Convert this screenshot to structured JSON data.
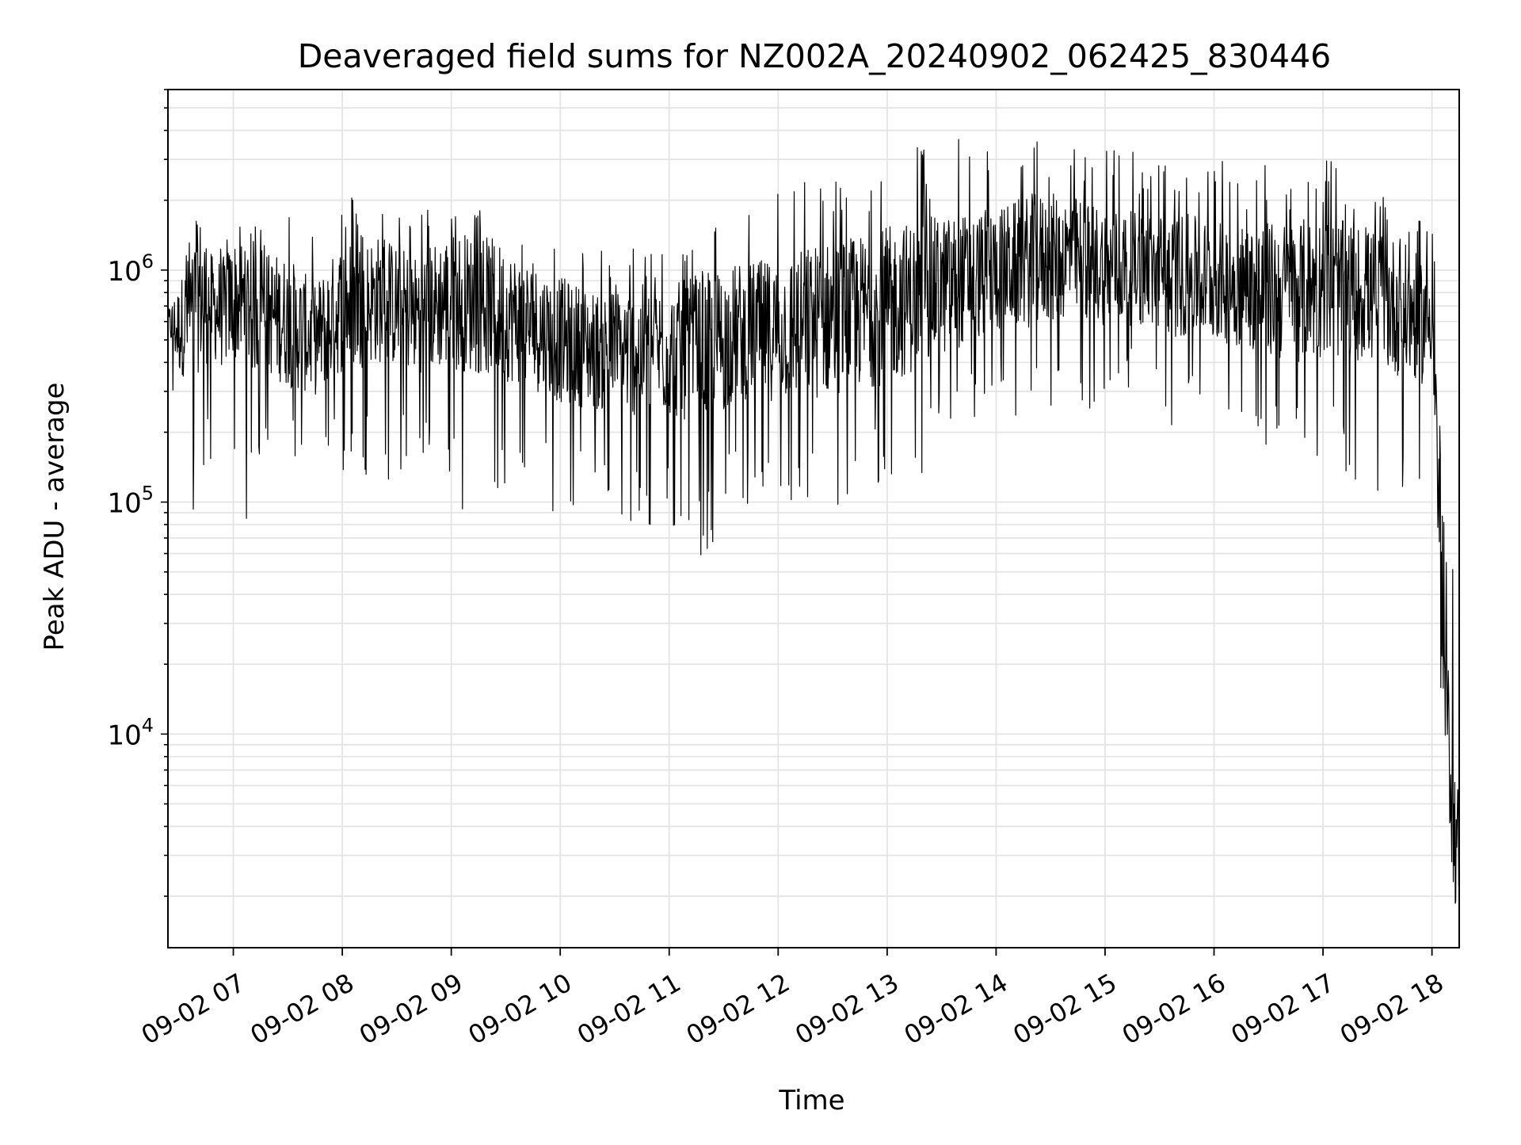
{
  "chart_data": {
    "type": "line",
    "title": "Deaveraged field sums for NZ002A_20240902_062425_830446",
    "xlabel": "Time",
    "ylabel": "Peak ADU - average",
    "y_scale": "log",
    "xlim": [
      "2024-09-02T06:24",
      "2024-09-02T18:15"
    ],
    "ylim": [
      1200,
      6000000
    ],
    "grid": true,
    "grid_minor": true,
    "line_color": "#000000",
    "x_ticks": [
      {
        "value": "2024-09-02T07:00",
        "label": "09-02 07"
      },
      {
        "value": "2024-09-02T08:00",
        "label": "09-02 08"
      },
      {
        "value": "2024-09-02T09:00",
        "label": "09-02 09"
      },
      {
        "value": "2024-09-02T10:00",
        "label": "09-02 10"
      },
      {
        "value": "2024-09-02T11:00",
        "label": "09-02 11"
      },
      {
        "value": "2024-09-02T12:00",
        "label": "09-02 12"
      },
      {
        "value": "2024-09-02T13:00",
        "label": "09-02 13"
      },
      {
        "value": "2024-09-02T14:00",
        "label": "09-02 14"
      },
      {
        "value": "2024-09-02T15:00",
        "label": "09-02 15"
      },
      {
        "value": "2024-09-02T16:00",
        "label": "09-02 16"
      },
      {
        "value": "2024-09-02T17:00",
        "label": "09-02 17"
      },
      {
        "value": "2024-09-02T18:00",
        "label": "09-02 18"
      }
    ],
    "y_ticks": [
      {
        "value": 10000,
        "base": "10",
        "exp": "4"
      },
      {
        "value": 100000,
        "base": "10",
        "exp": "5"
      },
      {
        "value": 1000000,
        "base": "10",
        "exp": "6"
      }
    ],
    "series": [
      {
        "x": [
          "2024-09-02T06:24",
          "2024-09-02T06:30",
          "2024-09-02T06:36",
          "2024-09-02T06:42",
          "2024-09-02T06:48",
          "2024-09-02T06:54",
          "2024-09-02T07:00",
          "2024-09-02T07:10",
          "2024-09-02T07:20",
          "2024-09-02T07:30",
          "2024-09-02T07:45",
          "2024-09-02T08:00",
          "2024-09-02T08:20",
          "2024-09-02T08:40",
          "2024-09-02T09:00",
          "2024-09-02T09:20",
          "2024-09-02T09:40",
          "2024-09-02T10:00",
          "2024-09-02T10:20",
          "2024-09-02T10:40",
          "2024-09-02T11:00",
          "2024-09-02T11:20",
          "2024-09-02T11:40",
          "2024-09-02T12:00",
          "2024-09-02T12:20",
          "2024-09-02T12:40",
          "2024-09-02T13:00",
          "2024-09-02T13:20",
          "2024-09-02T13:40",
          "2024-09-02T14:00",
          "2024-09-02T14:20",
          "2024-09-02T14:40",
          "2024-09-02T15:00",
          "2024-09-02T15:20",
          "2024-09-02T15:40",
          "2024-09-02T16:00",
          "2024-09-02T16:20",
          "2024-09-02T16:40",
          "2024-09-02T17:00",
          "2024-09-02T17:20",
          "2024-09-02T17:40",
          "2024-09-02T17:55",
          "2024-09-02T18:00",
          "2024-09-02T18:03",
          "2024-09-02T18:06",
          "2024-09-02T18:09",
          "2024-09-02T18:12",
          "2024-09-02T18:15"
        ],
        "y": [
          600000,
          550000,
          650000,
          800000,
          700000,
          650000,
          750000,
          700000,
          650000,
          600000,
          500000,
          700000,
          750000,
          650000,
          750000,
          700000,
          600000,
          500000,
          450000,
          450000,
          450000,
          450000,
          550000,
          550000,
          600000,
          650000,
          700000,
          800000,
          900000,
          1000000,
          1100000,
          1150000,
          1050000,
          1000000,
          950000,
          900000,
          850000,
          800000,
          850000,
          800000,
          700000,
          600000,
          650000,
          150000,
          20000,
          10000,
          4000,
          3000
        ],
        "y_max": [
          800000,
          1000000,
          1500000,
          2800000,
          1500000,
          1500000,
          1500000,
          1600000,
          1700000,
          2400000,
          2000000,
          2200000,
          1900000,
          1800000,
          2000000,
          1800000,
          1700000,
          1300000,
          1200000,
          1300000,
          1400000,
          1600000,
          1900000,
          2300000,
          2600000,
          2900000,
          3300000,
          3600000,
          3800000,
          3900000,
          4200000,
          4000000,
          3500000,
          3400000,
          3300000,
          3100000,
          3000000,
          2900000,
          3400000,
          2400000,
          1900000,
          1600000,
          1900000,
          1000000,
          95000,
          90000,
          48000,
          45000
        ],
        "y_min": [
          450000,
          130000,
          90000,
          85000,
          150000,
          130000,
          100000,
          78000,
          110000,
          130000,
          170000,
          120000,
          110000,
          130000,
          90000,
          80000,
          100000,
          80000,
          85000,
          70000,
          75000,
          55000,
          90000,
          100000,
          80000,
          100000,
          100000,
          130000,
          200000,
          250000,
          220000,
          250000,
          250000,
          280000,
          200000,
          220000,
          180000,
          120000,
          150000,
          120000,
          90000,
          100000,
          230000,
          40000,
          9000,
          4500,
          1700,
          2500
        ]
      }
    ]
  }
}
